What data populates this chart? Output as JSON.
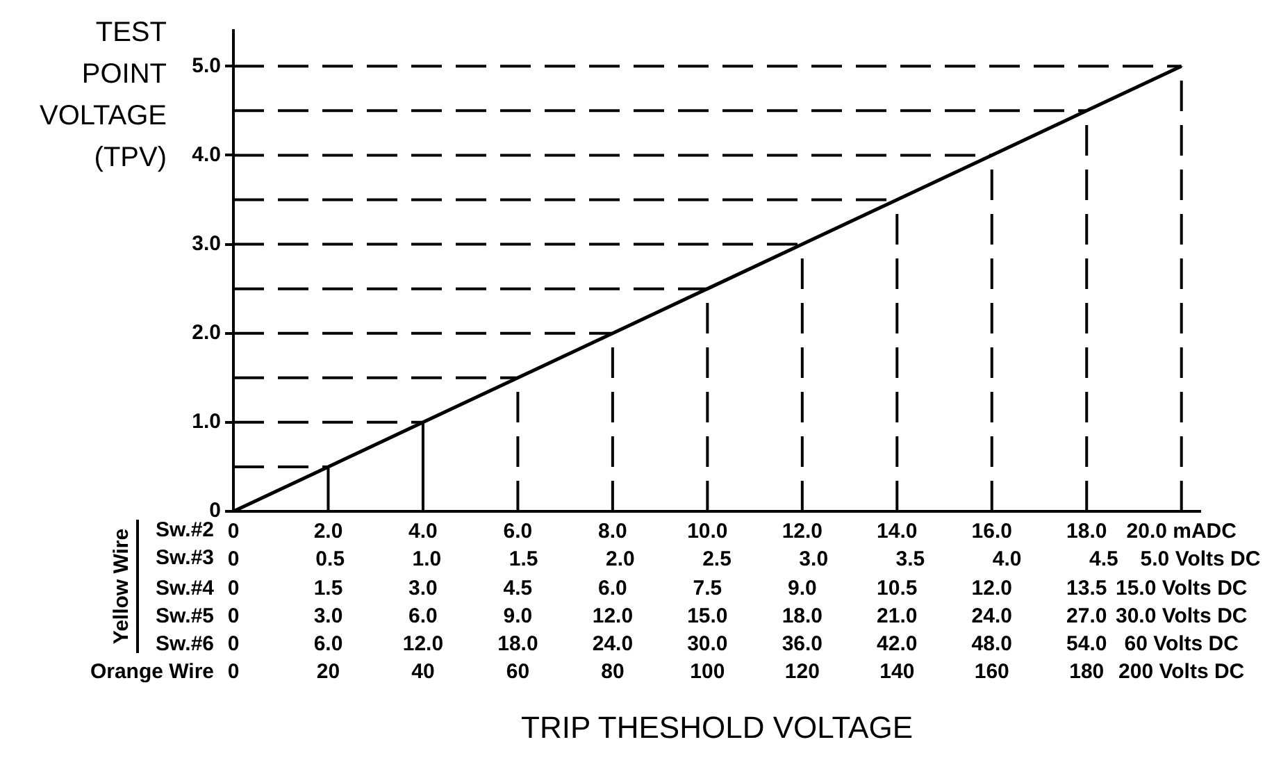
{
  "chart_data": {
    "type": "line",
    "ylabel": "TEST POINT VOLTAGE (TPV)",
    "xlabel": "Sw.#2",
    "x2label": "Sw.#3",
    "annotations": [
      "Yellow Wire",
      "Sw.#4",
      "0",
      "1.5",
      "3.0",
      "4.5",
      "6.0",
      "7.5",
      "9.0",
      "10.5",
      "12.0",
      "13.5",
      "15.0 Volts DC",
      "Sw.#5",
      "0",
      "3.0",
      "6.0",
      "9.0",
      "12.0",
      "15.0",
      "18.0",
      "21.0",
      "24.0",
      "27.0",
      "30.0 Volts DC",
      "Sw.#6",
      "0",
      "6.0",
      "12.0",
      "18.0",
      "24.0",
      "30.0",
      "36.0",
      "42.0",
      "48.0",
      "54.0",
      "60 Volts DC",
      "Orange Wire",
      "0",
      "20",
      "40",
      "60",
      "80",
      "100",
      "120",
      "140",
      "160",
      "180",
      "200 Volts DC",
      "TRIP THESHOLD VOLTAGE"
    ],
    "series": [
      {
        "color": "#000000",
        "x": [
          0,
          2,
          4,
          6,
          8,
          10,
          12,
          14,
          16,
          18,
          20
        ],
        "values": [
          0,
          0.5,
          1,
          1.5,
          2,
          2.5,
          3,
          3.5,
          4,
          4.5,
          5
        ]
      }
    ],
    "marker": "none",
    "line_style": "solid",
    "legend": false,
    "grid": false,
    "xlim": [
      0,
      20.4
    ],
    "ylim": [
      0,
      5.4
    ],
    "yticks": [
      0,
      {
        "value": 1,
        "label": "1.0"
      },
      {
        "value": 2,
        "label": "2.0"
      },
      {
        "value": 3,
        "label": "3.0"
      },
      {
        "value": 4,
        "label": "4.0"
      },
      {
        "value": 5,
        "label": "5.0"
      }
    ],
    "xticks": [
      0,
      {
        "value": 2,
        "label": "2.0"
      },
      {
        "value": 4,
        "label": "4.0"
      },
      {
        "value": 6,
        "label": "6.0"
      },
      {
        "value": 8,
        "label": "8.0"
      },
      {
        "value": 10,
        "label": "10.0"
      },
      {
        "value": 12,
        "label": "12.0"
      },
      {
        "value": 14,
        "label": "14.0"
      },
      {
        "value": 16,
        "label": "16.0"
      },
      {
        "value": 18,
        "label": "18.0"
      },
      {
        "value": 20,
        "label": "20.0 mADC"
      }
    ],
    "x2lim": [
      0,
      5
    ],
    "x2ticks": [
      0,
      0.5,
      {
        "value": 1,
        "label": "1.0"
      },
      1.5,
      {
        "value": 2,
        "label": "2.0"
      },
      2.5,
      {
        "value": 3,
        "label": "3.0"
      },
      3.5,
      {
        "value": 4,
        "label": "4.0"
      },
      4.5,
      {
        "value": 5,
        "label": "5.0 Volts DC"
      }
    ],
    "ref_lines": [
      {
        "axis": "y",
        "value": 0.5,
        "line_style": "dashed"
      },
      {
        "axis": "y",
        "value": 1,
        "line_style": "dashed"
      },
      {
        "axis": "y",
        "value": 1.5,
        "line_style": "dashed"
      },
      {
        "axis": "y",
        "value": 2,
        "line_style": "dashed"
      },
      {
        "axis": "y",
        "value": 2.5,
        "line_style": "dashed"
      },
      {
        "axis": "y",
        "value": 3,
        "line_style": "dashed"
      },
      {
        "axis": "y",
        "value": 3.5,
        "line_style": "dashed"
      },
      {
        "axis": "y",
        "value": 4,
        "line_style": "dashed"
      },
      {
        "axis": "y",
        "value": 4.5,
        "line_style": "dashed"
      },
      {
        "axis": "y",
        "value": 5,
        "line_style": "dashed"
      },
      {
        "axis": "x",
        "value": 2,
        "line_style": "solid"
      },
      {
        "axis": "x",
        "value": 4,
        "line_style": "solid"
      },
      {
        "axis": "x",
        "value": 6,
        "line_style": "dashed"
      },
      {
        "axis": "x",
        "value": 8,
        "line_style": "dashed"
      },
      {
        "axis": "x",
        "value": 10,
        "line_style": "dashed"
      },
      {
        "axis": "x",
        "value": 12,
        "line_style": "dashed"
      },
      {
        "axis": "x",
        "value": 14,
        "line_style": "dashed"
      },
      {
        "axis": "x",
        "value": 16,
        "line_style": "dashed"
      },
      {
        "axis": "x",
        "value": 18,
        "line_style": "dashed"
      },
      {
        "axis": "x",
        "value": 20,
        "line_style": "dashed"
      }
    ]
  }
}
